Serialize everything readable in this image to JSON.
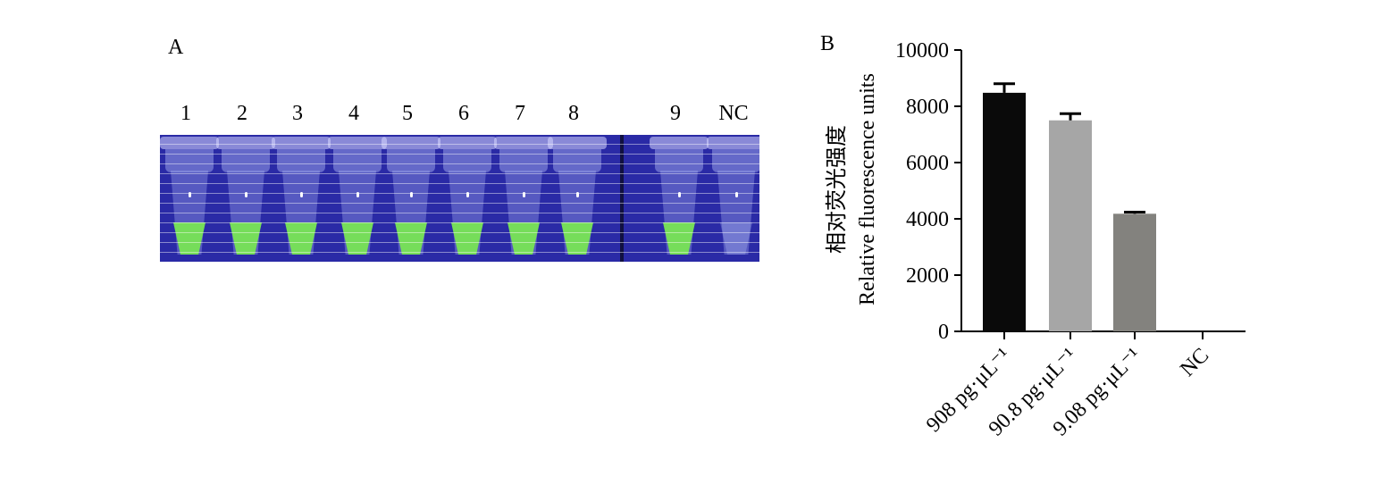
{
  "panel_a": {
    "label": "A",
    "tube_labels": [
      "1",
      "2",
      "3",
      "4",
      "5",
      "6",
      "7",
      "8",
      "9",
      "NC"
    ]
  },
  "panel_b": {
    "label": "B"
  },
  "chart_data": {
    "type": "bar",
    "categories": [
      "908 pg·μL⁻¹",
      "90.8 pg·μL⁻¹",
      "9.08 pg·μL⁻¹",
      "NC"
    ],
    "values": [
      8480,
      7500,
      4180,
      0
    ],
    "errors": [
      320,
      240,
      60,
      0
    ],
    "colors": [
      "#0a0a0a",
      "#a6a6a6",
      "#83827e",
      "#000000"
    ],
    "ylabel_cn": "相对荧光强度",
    "ylabel": "Relative fluorescence units",
    "ylim": [
      0,
      10000
    ],
    "yticks": [
      0,
      2000,
      4000,
      6000,
      8000,
      10000
    ],
    "grid": false,
    "legend": "none"
  }
}
